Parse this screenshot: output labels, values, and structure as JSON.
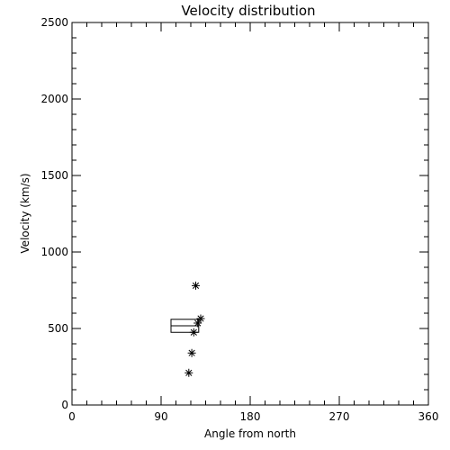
{
  "chart_data": {
    "type": "scatter",
    "title": "Velocity distribution",
    "xlabel": "Angle from north",
    "ylabel": "Velocity (km/s)",
    "xlim": [
      0,
      360
    ],
    "ylim": [
      0,
      2500
    ],
    "x_ticks": [
      0,
      90,
      180,
      270,
      360
    ],
    "x_tick_labels": [
      "0",
      "90",
      "180",
      "270",
      "360"
    ],
    "y_ticks": [
      0,
      500,
      1000,
      1500,
      2000,
      2500
    ],
    "y_tick_labels": [
      "0",
      "500",
      "1000",
      "1500",
      "2000",
      "2500"
    ],
    "grid": false,
    "marker": "asterisk",
    "points": [
      {
        "x": 125,
        "y": 780
      },
      {
        "x": 130,
        "y": 565
      },
      {
        "x": 127,
        "y": 535
      },
      {
        "x": 123,
        "y": 475
      },
      {
        "x": 121,
        "y": 340
      },
      {
        "x": 118,
        "y": 210
      }
    ],
    "box": {
      "x0": 100,
      "x1": 128,
      "y0": 475,
      "y1": 560
    },
    "colors": {
      "foreground": "#000000",
      "background": "#ffffff"
    }
  }
}
